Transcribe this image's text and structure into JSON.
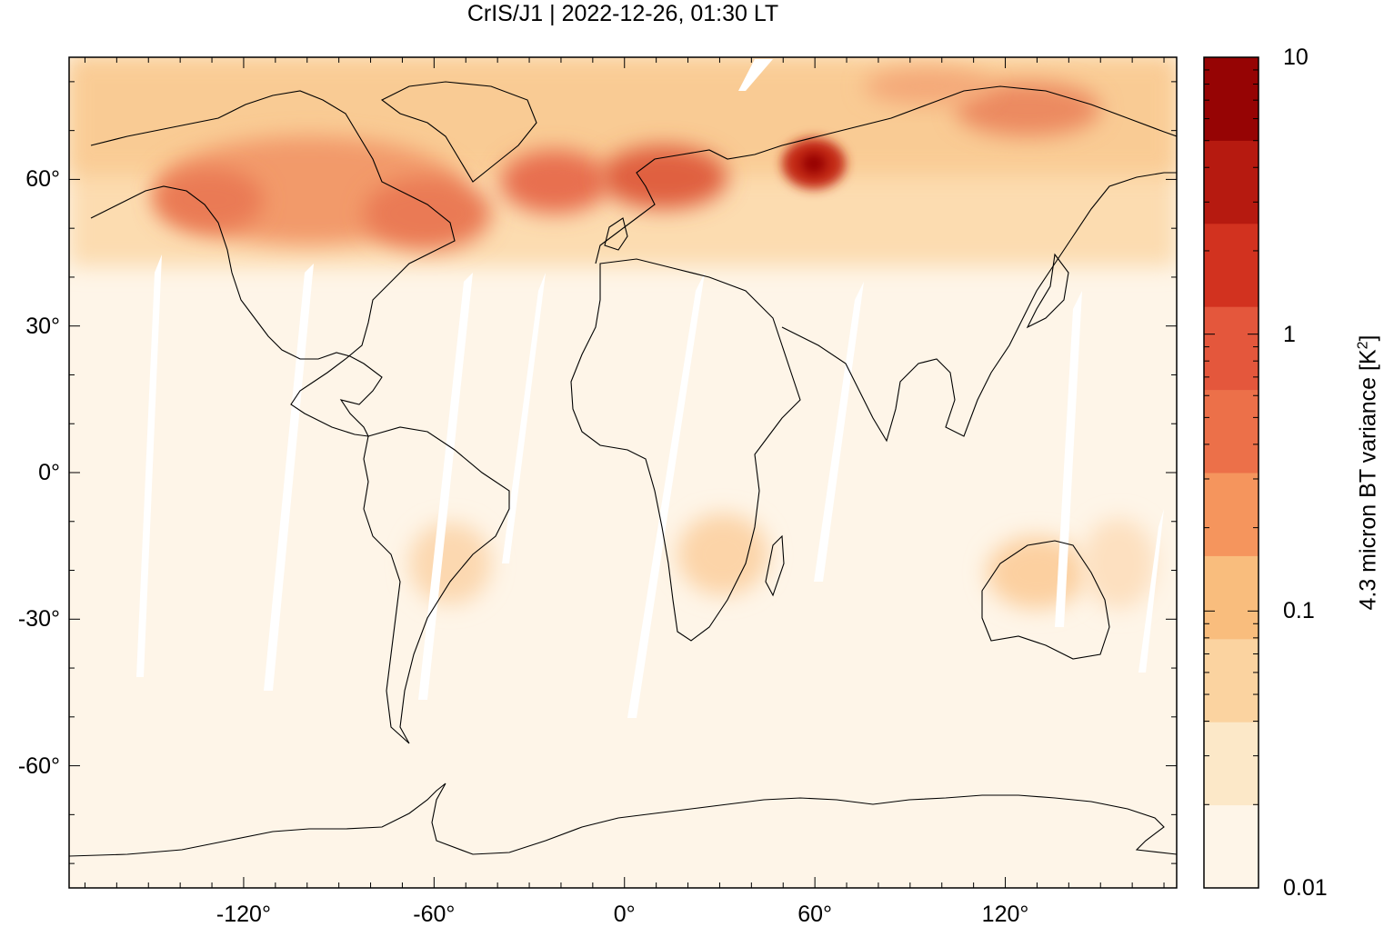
{
  "title": "CrIS/J1 | 2022-12-26, 01:30 LT",
  "x_axis": {
    "ticks": [
      {
        "value": -120,
        "label": "-120°"
      },
      {
        "value": -60,
        "label": "-60°"
      },
      {
        "value": 0,
        "label": "0°"
      },
      {
        "value": 60,
        "label": "60°"
      },
      {
        "value": 120,
        "label": "120°"
      }
    ],
    "range": [
      -175,
      174
    ]
  },
  "y_axis": {
    "ticks": [
      {
        "value": 60,
        "label": "60°"
      },
      {
        "value": 30,
        "label": "30°"
      },
      {
        "value": 0,
        "label": "0°"
      },
      {
        "value": -30,
        "label": "-30°"
      },
      {
        "value": -60,
        "label": "-60°"
      }
    ],
    "range": [
      -85,
      85
    ]
  },
  "colorbar": {
    "label_main": "4.3 micron BT variance [K",
    "label_sup": "2",
    "label_end": "]",
    "scale": "log",
    "range": [
      0.01,
      10
    ],
    "tick_labels": [
      {
        "value": 10,
        "label": "10"
      },
      {
        "value": 1,
        "label": "1"
      },
      {
        "value": 0.1,
        "label": "0.1"
      },
      {
        "value": 0.01,
        "label": "0.01"
      }
    ],
    "levels": [
      "#fef5e8",
      "#fce8c8",
      "#fbd3a0",
      "#f9bd7d",
      "#f5955d",
      "#ec7049",
      "#e4573c",
      "#d2321f",
      "#b61a10",
      "#960404"
    ]
  },
  "chart_data": {
    "type": "heatmap",
    "title": "CrIS/J1 | 2022-12-26, 01:30 LT",
    "projection": "equirectangular",
    "x_range_deg": [
      -175,
      174
    ],
    "y_range_deg": [
      -85,
      85
    ],
    "colorbar_label": "4.3 micron BT variance [K2]",
    "colorbar_scale": "log",
    "colorbar_range": [
      0.01,
      10
    ],
    "regions": [
      {
        "name": "background",
        "lon": [
          -175,
          174
        ],
        "lat": [
          -85,
          85
        ],
        "value": 0.012
      },
      {
        "name": "northern-band",
        "lon": [
          -175,
          174
        ],
        "lat": [
          45,
          85
        ],
        "value": 0.15
      },
      {
        "name": "canada-high",
        "lon": [
          -130,
          -60
        ],
        "lat": [
          50,
          70
        ],
        "value": 0.5
      },
      {
        "name": "north-atlantic",
        "lon": [
          -40,
          10
        ],
        "lat": [
          55,
          68
        ],
        "value": 0.6
      },
      {
        "name": "scandinavia",
        "lon": [
          0,
          30
        ],
        "lat": [
          55,
          68
        ],
        "value": 1.2
      },
      {
        "name": "ural-peak",
        "lon": [
          55,
          65
        ],
        "lat": [
          60,
          67
        ],
        "value": 5.0
      },
      {
        "name": "east-siberia",
        "lon": [
          115,
          145
        ],
        "lat": [
          68,
          78
        ],
        "value": 0.7
      },
      {
        "name": "southern-africa",
        "lon": [
          15,
          40
        ],
        "lat": [
          -25,
          -10
        ],
        "value": 0.08
      },
      {
        "name": "australia",
        "lon": [
          120,
          150
        ],
        "lat": [
          -30,
          -15
        ],
        "value": 0.08
      },
      {
        "name": "south-america",
        "lon": [
          -65,
          -40
        ],
        "lat": [
          -30,
          -10
        ],
        "value": 0.06
      }
    ]
  }
}
